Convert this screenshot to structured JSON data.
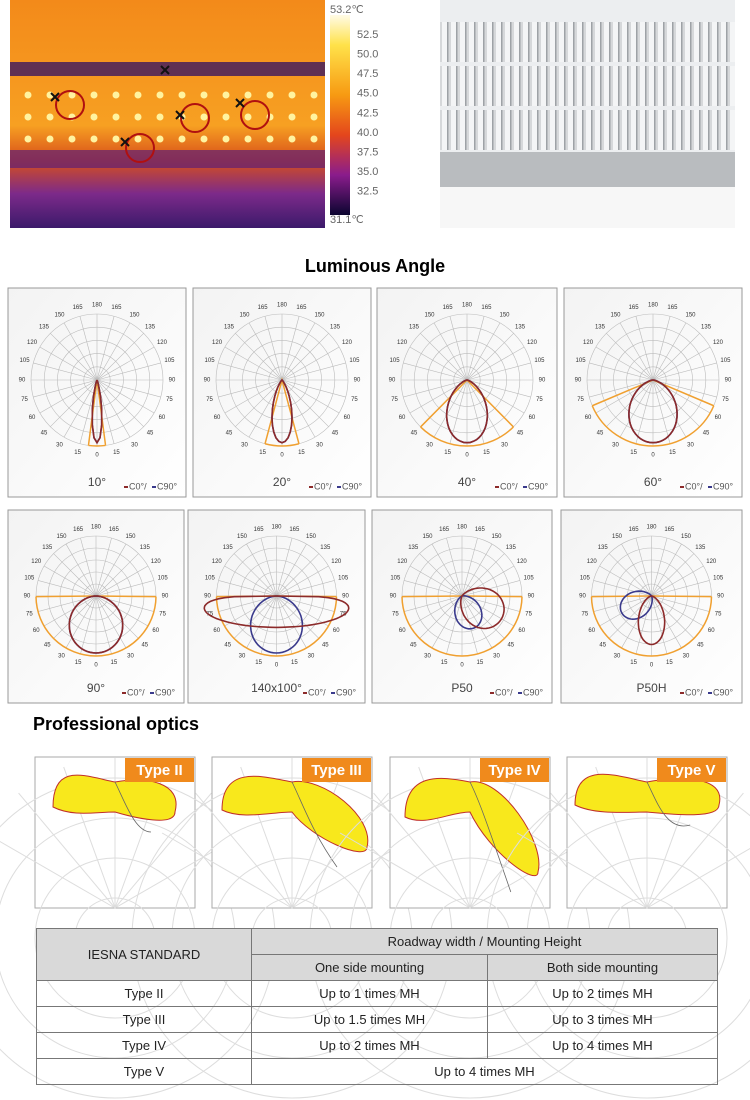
{
  "thermal": {
    "max": "53.2℃",
    "scale": [
      "52.5",
      "50.0",
      "47.5",
      "45.0",
      "42.5",
      "40.0",
      "37.5",
      "35.0",
      "32.5"
    ],
    "min": "31.1℃"
  },
  "luminous": {
    "title": "Luminous Angle",
    "angle_labels": [
      "180",
      "165",
      "150",
      "135",
      "120",
      "105",
      "90",
      "75",
      "60",
      "45",
      "30",
      "15",
      "0"
    ],
    "legend": [
      "C0°/",
      "C90°"
    ],
    "panels": [
      "10°",
      "20°",
      "40°",
      "60°",
      "90°",
      "140x100°",
      "P50",
      "P50H"
    ]
  },
  "optics": {
    "title": "Professional optics",
    "types": [
      "Type II",
      "Type III",
      "Type IV",
      "Type V"
    ]
  },
  "table": {
    "header": {
      "standard": "IESNA STANDARD",
      "group": "Roadway width / Mounting Height",
      "sub": [
        "One side mounting",
        "Both side mounting"
      ]
    },
    "rows": [
      [
        "Type II",
        "Up to 1 times MH",
        "Up to 2 times MH"
      ],
      [
        "Type III",
        "Up to 1.5 times MH",
        "Up to 3 times MH"
      ],
      [
        "Type IV",
        "Up to 2 times MH",
        "Up to 4 times MH"
      ],
      [
        "Type V",
        "Up to 4 times MH"
      ]
    ]
  }
}
